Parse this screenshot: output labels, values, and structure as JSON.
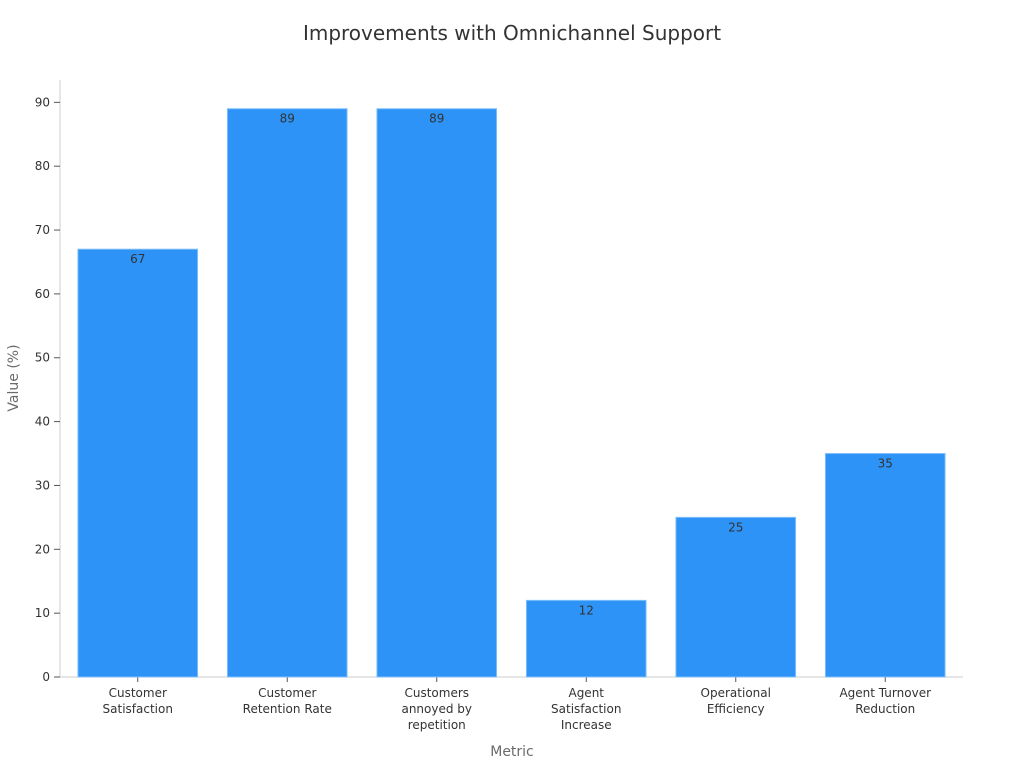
{
  "chart_data": {
    "type": "bar",
    "title": "Improvements with Omnichannel Support",
    "xlabel": "Metric",
    "ylabel": "Value (%)",
    "categories": [
      [
        "Customer",
        "Satisfaction"
      ],
      [
        "Customer",
        "Retention Rate"
      ],
      [
        "Customers",
        "annoyed by",
        "repetition"
      ],
      [
        "Agent",
        "Satisfaction",
        "Increase"
      ],
      [
        "Operational",
        "Efficiency"
      ],
      [
        "Agent Turnover",
        "Reduction"
      ]
    ],
    "values": [
      67,
      89,
      89,
      12,
      25,
      35
    ],
    "ylim": [
      0,
      93.5
    ],
    "yticks": [
      0,
      10,
      20,
      30,
      40,
      50,
      60,
      70,
      80,
      90
    ],
    "grid": false,
    "legend": "none",
    "colors": {
      "bar": "#2e93f7",
      "axis": "#cccccc",
      "tick": "#333333"
    }
  }
}
